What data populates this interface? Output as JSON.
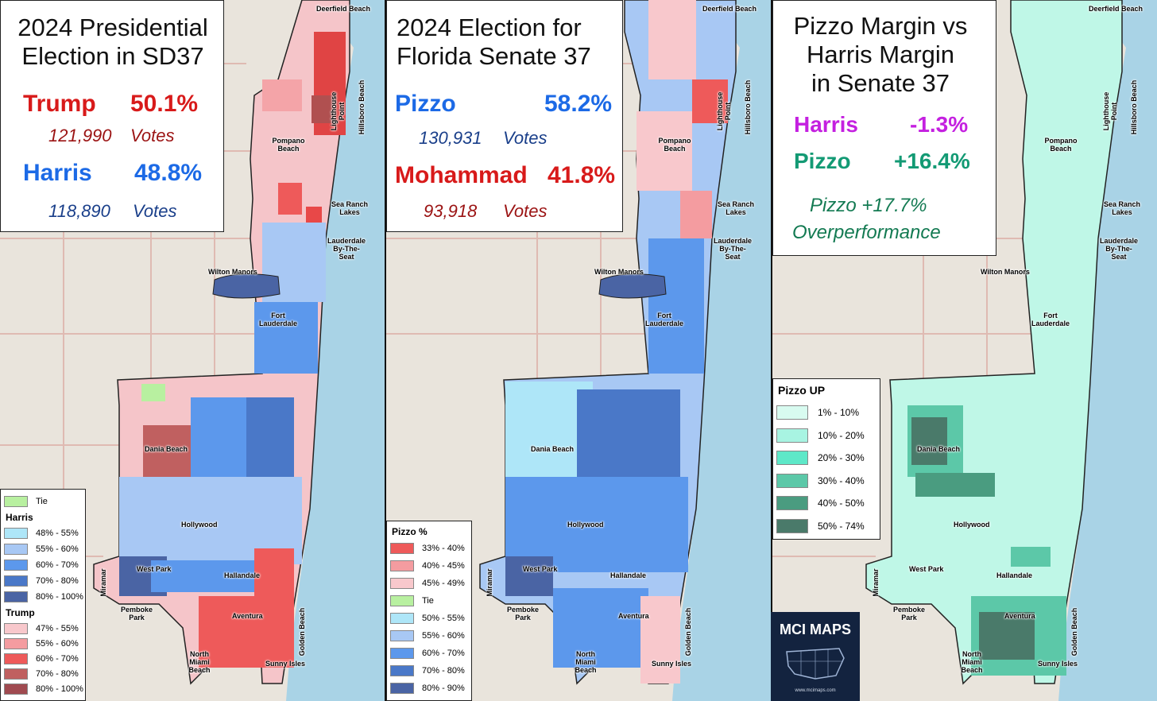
{
  "panels": [
    {
      "title_line1": "2024 Presidential",
      "title_line2": "Election in SD37",
      "cand1_name": "Trump",
      "cand1_pct": "50.1%",
      "cand1_votes": "121,990",
      "votes_word": "Votes",
      "cand2_name": "Harris",
      "cand2_pct": "48.8%",
      "cand2_votes": "118,890"
    },
    {
      "title_line1": "2024 Election for",
      "title_line2": "Florida Senate 37",
      "cand1_name": "Pizzo",
      "cand1_pct": "58.2%",
      "cand1_votes": "130,931",
      "votes_word": "Votes",
      "cand2_name": "Mohammad",
      "cand2_pct": "41.8%",
      "cand2_votes": "93,918"
    },
    {
      "title_line1": "Pizzo Margin vs",
      "title_line2": "Harris Margin",
      "title_line3": "in Senate 37",
      "row1_name": "Harris",
      "row1_val": "-1.3%",
      "row2_name": "Pizzo",
      "row2_val": "+16.4%",
      "note_line1": "Pizzo  +17.7%",
      "note_line2": "Overperformance"
    }
  ],
  "legend1": {
    "tie": "Tie",
    "harris_header": "Harris",
    "harris": [
      "48% - 55%",
      "55% - 60%",
      "60% - 70%",
      "70% - 80%",
      "80% - 100%"
    ],
    "trump_header": "Trump",
    "trump": [
      "47% - 55%",
      "55% - 60%",
      "60% - 70%",
      "70% - 80%",
      "80% - 100%"
    ],
    "colors_tie": "#b8f0a0",
    "colors_harris": [
      "#aee6f8",
      "#a8c8f4",
      "#5c98ec",
      "#4a78c8",
      "#4a64a4"
    ],
    "colors_trump": [
      "#f8c8cc",
      "#f49ca0",
      "#ee5a5a",
      "#c06060",
      "#a04a50"
    ]
  },
  "legend2": {
    "header": "Pizzo  %",
    "labels": [
      "33% - 40%",
      "40% - 45%",
      "45% - 49%",
      "Tie",
      "50% - 55%",
      "55% - 60%",
      "60% - 70%",
      "70% - 80%",
      "80% - 90%"
    ],
    "colors": [
      "#ee5a5a",
      "#f49ca0",
      "#f8c8cc",
      "#b8f0a0",
      "#aee6f8",
      "#a8c8f4",
      "#5c98ec",
      "#4a78c8",
      "#4a64a4"
    ]
  },
  "legend3": {
    "header": "Pizzo UP",
    "labels": [
      "1% - 10%",
      "10% - 20%",
      "20% - 30%",
      "30% - 40%",
      "40% - 50%",
      "50% - 74%"
    ],
    "colors": [
      "#d8fbf0",
      "#a8f4e2",
      "#5ee8c8",
      "#5cc8a8",
      "#4a9c80",
      "#4a7a6a"
    ]
  },
  "places": {
    "deerfield": "Deerfield Beach",
    "hillsboro": "Hillsboro Beach",
    "pompano": "Pompano Beach",
    "lighthouse": "Lighthouse Point",
    "searanch": "Sea Ranch Lakes",
    "lauderdale_sea": "Lauderdale By-The- Seat",
    "wilton": "Wilton Manors",
    "fortl": "Fort Lauderdale",
    "dania": "Dania Beach",
    "hollywood": "Hollywood",
    "westpark": "West Park",
    "miramar": "Miramar",
    "hallandale": "Hallandale",
    "pembroke": "Pemboke Park",
    "aventura": "Aventura",
    "golden": "Golden Beach",
    "nmiami": "North Miami Beach",
    "sunny": "Sunny Isles"
  },
  "logo": {
    "title": "MCI MAPS",
    "url": "www.mcimaps.com"
  }
}
